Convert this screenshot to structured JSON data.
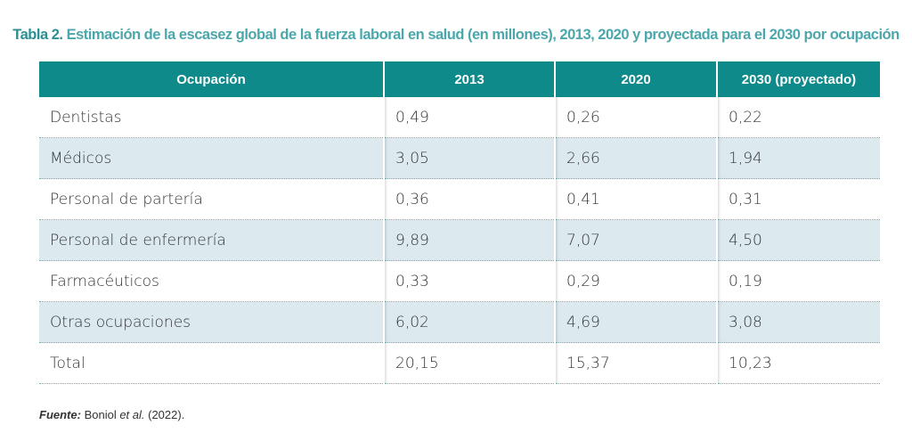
{
  "title": {
    "lead": "Tabla 2.",
    "text": " Estimación de la escasez global de la fuerza laboral en salud (en millones), 2013, 2020 y proyectada para el 2030 por ocupación"
  },
  "table": {
    "headers": [
      "Ocupación",
      "2013",
      "2020",
      "2030 (proyectado)"
    ],
    "rows": [
      [
        "Dentistas",
        "0,49",
        "0,26",
        "0,22"
      ],
      [
        "Médicos",
        "3,05",
        "2,66",
        "1,94"
      ],
      [
        "Personal de partería",
        "0,36",
        "0,41",
        "0,31"
      ],
      [
        "Personal de enfermería",
        "9,89",
        "7,07",
        "4,50"
      ],
      [
        "Farmacéuticos",
        "0,33",
        "0,29",
        "0,19"
      ],
      [
        "Otras ocupaciones",
        "6,02",
        "4,69",
        "3,08"
      ],
      [
        "Total",
        "20,15",
        "15,37",
        "10,23"
      ]
    ]
  },
  "source": {
    "label": "Fuente:",
    "text_before": " Boniol ",
    "italic": "et al.",
    "text_after": " (2022)."
  }
}
